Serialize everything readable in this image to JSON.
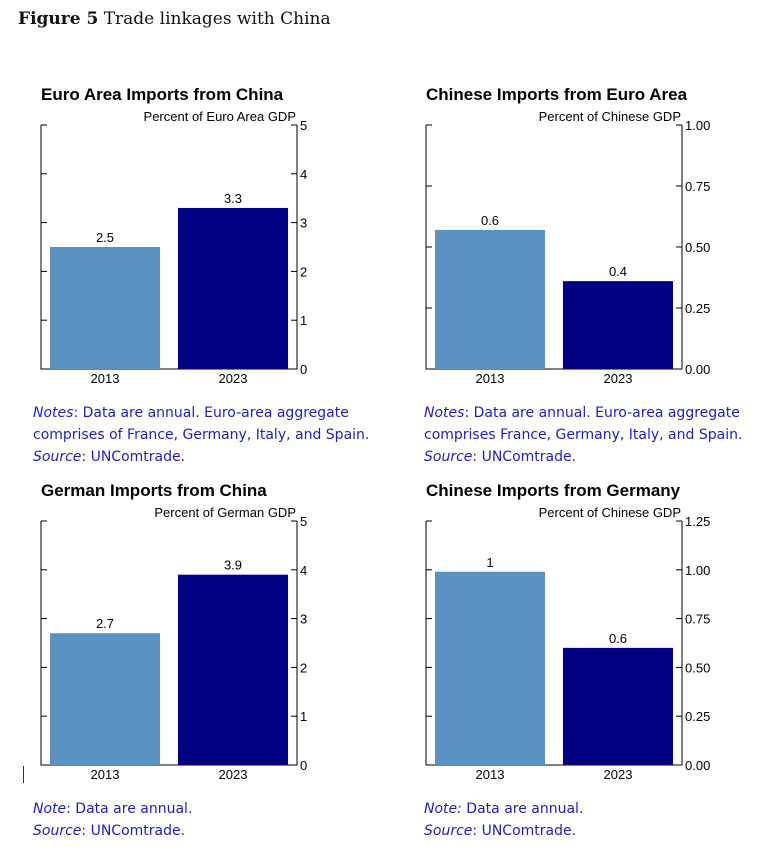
{
  "figure": {
    "label": "Figure 5",
    "title": "Trade linkages with China"
  },
  "chart_data": [
    {
      "type": "bar",
      "title": "Euro Area Imports from China",
      "ylabel": "Percent of Euro Area GDP",
      "categories": [
        "2013",
        "2023"
      ],
      "values": [
        2.5,
        3.3
      ],
      "data_labels": [
        "2.5",
        "3.3"
      ],
      "colors": [
        "#5b92c2",
        "#000080"
      ],
      "ylim": [
        0,
        5
      ],
      "yticks": [
        0,
        1,
        2,
        3,
        4,
        5
      ],
      "ytick_labels": [
        "0",
        "1",
        "2",
        "3",
        "4",
        "5"
      ],
      "grid": false
    },
    {
      "type": "bar",
      "title": "Chinese Imports from Euro Area",
      "ylabel": "Percent of Chinese GDP",
      "categories": [
        "2013",
        "2023"
      ],
      "values": [
        0.57,
        0.36
      ],
      "data_labels": [
        "0.6",
        "0.4"
      ],
      "colors": [
        "#5b92c2",
        "#000080"
      ],
      "ylim": [
        0,
        1
      ],
      "yticks": [
        0,
        0.25,
        0.5,
        0.75,
        1.0
      ],
      "ytick_labels": [
        "0.00",
        "0.25",
        "0.50",
        "0.75",
        "1.00"
      ],
      "grid": false
    },
    {
      "type": "bar",
      "title": "German Imports from China",
      "ylabel": "Percent of German GDP",
      "categories": [
        "2013",
        "2023"
      ],
      "values": [
        2.7,
        3.9
      ],
      "data_labels": [
        "2.7",
        "3.9"
      ],
      "colors": [
        "#5b92c2",
        "#000080"
      ],
      "ylim": [
        0,
        5
      ],
      "yticks": [
        0,
        1,
        2,
        3,
        4,
        5
      ],
      "ytick_labels": [
        "0",
        "1",
        "2",
        "3",
        "4",
        "5"
      ],
      "grid": false
    },
    {
      "type": "bar",
      "title": "Chinese Imports from Germany",
      "ylabel": "Percent of Chinese GDP",
      "categories": [
        "2013",
        "2023"
      ],
      "values": [
        0.99,
        0.6
      ],
      "data_labels": [
        "1",
        "0.6"
      ],
      "colors": [
        "#5b92c2",
        "#000080"
      ],
      "ylim": [
        0,
        1.25
      ],
      "yticks": [
        0,
        0.25,
        0.5,
        0.75,
        1.0,
        1.25
      ],
      "ytick_labels": [
        "0.00",
        "0.25",
        "0.50",
        "0.75",
        "1.00",
        "1.25"
      ],
      "grid": false
    }
  ],
  "notes": [
    {
      "label": "Notes",
      "text": ": Data are annual. Euro-area aggregate comprises of France, Germany, Italy, and Spain.",
      "source_label": "Source",
      "source_text": ": UNComtrade."
    },
    {
      "label": "Notes",
      "text": ": Data are annual. Euro-area aggregate comprises France, Germany, Italy, and Spain.",
      "source_label": "Source",
      "source_text": ": UNComtrade."
    },
    {
      "label": "Note",
      "text": ": Data are annual.",
      "source_label": "Source",
      "source_text": ": UNComtrade."
    },
    {
      "label": "Note:",
      "text": " Data are annual.",
      "source_label": "Source",
      "source_text": ": UNComtrade."
    }
  ]
}
